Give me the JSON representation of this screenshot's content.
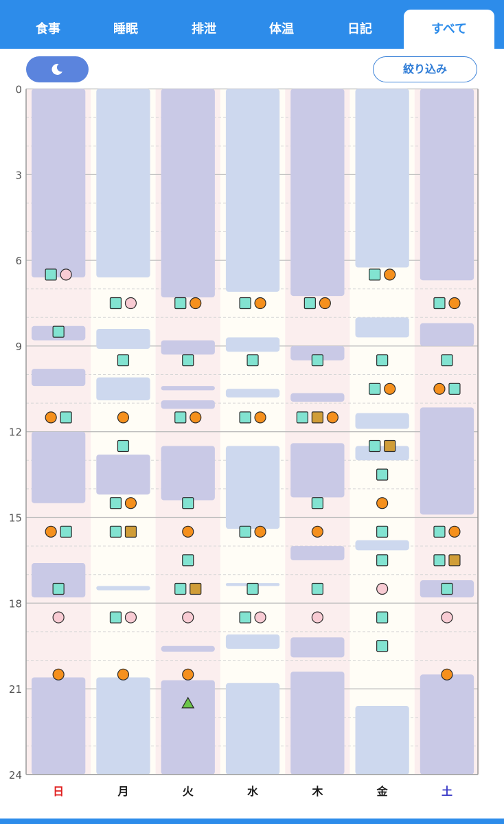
{
  "tabs": [
    {
      "label": "食事",
      "active": false
    },
    {
      "label": "睡眠",
      "active": false
    },
    {
      "label": "排泄",
      "active": false
    },
    {
      "label": "体温",
      "active": false
    },
    {
      "label": "日記",
      "active": false
    },
    {
      "label": "すべて",
      "active": true
    }
  ],
  "toolbar": {
    "night_toggle_icon": "moon-icon",
    "filter_label": "絞り込み"
  },
  "colors": {
    "tab_bar": "#2d8cea",
    "night_toggle": "#5b84dd",
    "sleep_dark": "#c9c9e6",
    "sleep_light": "#cdd8ee",
    "day_pink": "#fbeeee",
    "day_cream": "#fffdf6",
    "meal_marker": "#82e3d1",
    "urination_marker": "#f5901d",
    "temperature_marker": "#f8cbd3",
    "stool_marker": "#d09d38",
    "other_marker": "#6cc64a",
    "sunday_text": "#e02020",
    "saturday_text": "#3c3cc8"
  },
  "chart_data": {
    "type": "timeline",
    "y_axis": {
      "min": 0,
      "max": 24,
      "ticks": [
        0,
        3,
        6,
        9,
        12,
        15,
        18,
        21,
        24
      ]
    },
    "days": [
      {
        "label": "日",
        "bg": "pink",
        "label_color": "sunday",
        "sleep": [
          {
            "start": 0,
            "end": 6.6,
            "shade": "dark"
          },
          {
            "start": 8.3,
            "end": 8.8,
            "shade": "dark"
          },
          {
            "start": 9.8,
            "end": 10.4,
            "shade": "dark"
          },
          {
            "start": 12.0,
            "end": 14.5,
            "shade": "dark"
          },
          {
            "start": 16.6,
            "end": 17.8,
            "shade": "dark"
          },
          {
            "start": 20.6,
            "end": 24,
            "shade": "dark"
          }
        ],
        "events": [
          {
            "time": 6.5,
            "markers": [
              "meal",
              "temperature"
            ]
          },
          {
            "time": 8.5,
            "markers": [
              "meal"
            ]
          },
          {
            "time": 11.5,
            "markers": [
              "urination",
              "meal"
            ]
          },
          {
            "time": 15.5,
            "markers": [
              "urination",
              "meal"
            ]
          },
          {
            "time": 17.5,
            "markers": [
              "meal"
            ]
          },
          {
            "time": 18.5,
            "markers": [
              "temperature"
            ]
          },
          {
            "time": 20.5,
            "markers": [
              "urination"
            ]
          }
        ]
      },
      {
        "label": "月",
        "bg": "cream",
        "label_color": "normal",
        "sleep": [
          {
            "start": 0,
            "end": 6.6,
            "shade": "light"
          },
          {
            "start": 8.4,
            "end": 9.1,
            "shade": "light"
          },
          {
            "start": 10.1,
            "end": 10.9,
            "shade": "light"
          },
          {
            "start": 12.8,
            "end": 14.2,
            "shade": "dark"
          },
          {
            "start": 17.4,
            "end": 17.55,
            "shade": "light"
          },
          {
            "start": 20.6,
            "end": 24,
            "shade": "light"
          }
        ],
        "events": [
          {
            "time": 7.5,
            "markers": [
              "meal",
              "temperature"
            ]
          },
          {
            "time": 9.5,
            "markers": [
              "meal"
            ]
          },
          {
            "time": 11.5,
            "markers": [
              "urination"
            ]
          },
          {
            "time": 12.5,
            "markers": [
              "meal"
            ]
          },
          {
            "time": 14.5,
            "markers": [
              "meal",
              "urination"
            ]
          },
          {
            "time": 15.5,
            "markers": [
              "meal",
              "stool"
            ]
          },
          {
            "time": 18.5,
            "markers": [
              "meal",
              "temperature"
            ]
          },
          {
            "time": 20.5,
            "markers": [
              "urination"
            ]
          }
        ]
      },
      {
        "label": "火",
        "bg": "pink",
        "label_color": "normal",
        "sleep": [
          {
            "start": 0,
            "end": 7.3,
            "shade": "dark"
          },
          {
            "start": 8.8,
            "end": 9.3,
            "shade": "dark"
          },
          {
            "start": 10.4,
            "end": 10.55,
            "shade": "dark"
          },
          {
            "start": 10.9,
            "end": 11.2,
            "shade": "dark"
          },
          {
            "start": 12.5,
            "end": 14.4,
            "shade": "dark"
          },
          {
            "start": 19.5,
            "end": 19.7,
            "shade": "dark"
          },
          {
            "start": 20.7,
            "end": 24,
            "shade": "dark"
          }
        ],
        "events": [
          {
            "time": 7.5,
            "markers": [
              "meal",
              "urination"
            ]
          },
          {
            "time": 9.5,
            "markers": [
              "meal"
            ]
          },
          {
            "time": 11.5,
            "markers": [
              "meal",
              "urination"
            ]
          },
          {
            "time": 14.5,
            "markers": [
              "meal"
            ]
          },
          {
            "time": 15.5,
            "markers": [
              "urination"
            ]
          },
          {
            "time": 16.5,
            "markers": [
              "meal"
            ]
          },
          {
            "time": 17.5,
            "markers": [
              "meal",
              "stool"
            ]
          },
          {
            "time": 18.5,
            "markers": [
              "temperature"
            ]
          },
          {
            "time": 20.5,
            "markers": [
              "urination"
            ]
          },
          {
            "time": 21.5,
            "markers": [
              "other"
            ]
          }
        ]
      },
      {
        "label": "水",
        "bg": "cream",
        "label_color": "normal",
        "sleep": [
          {
            "start": 0,
            "end": 7.1,
            "shade": "light"
          },
          {
            "start": 8.7,
            "end": 9.2,
            "shade": "light"
          },
          {
            "start": 10.5,
            "end": 10.8,
            "shade": "light"
          },
          {
            "start": 12.5,
            "end": 15.4,
            "shade": "light"
          },
          {
            "start": 17.3,
            "end": 17.4,
            "shade": "light"
          },
          {
            "start": 19.1,
            "end": 19.6,
            "shade": "light"
          },
          {
            "start": 20.8,
            "end": 24,
            "shade": "light"
          }
        ],
        "events": [
          {
            "time": 7.5,
            "markers": [
              "meal",
              "urination"
            ]
          },
          {
            "time": 9.5,
            "markers": [
              "meal"
            ]
          },
          {
            "time": 11.5,
            "markers": [
              "meal",
              "urination"
            ]
          },
          {
            "time": 15.5,
            "markers": [
              "meal",
              "urination"
            ]
          },
          {
            "time": 17.5,
            "markers": [
              "meal"
            ]
          },
          {
            "time": 18.5,
            "markers": [
              "meal",
              "temperature"
            ]
          }
        ]
      },
      {
        "label": "木",
        "bg": "pink",
        "label_color": "normal",
        "sleep": [
          {
            "start": 0,
            "end": 7.25,
            "shade": "dark"
          },
          {
            "start": 9.0,
            "end": 9.5,
            "shade": "dark"
          },
          {
            "start": 10.65,
            "end": 10.95,
            "shade": "dark"
          },
          {
            "start": 12.4,
            "end": 14.3,
            "shade": "dark"
          },
          {
            "start": 16.0,
            "end": 16.5,
            "shade": "dark"
          },
          {
            "start": 19.2,
            "end": 19.9,
            "shade": "dark"
          },
          {
            "start": 20.4,
            "end": 24,
            "shade": "dark"
          }
        ],
        "events": [
          {
            "time": 7.5,
            "markers": [
              "meal",
              "urination"
            ]
          },
          {
            "time": 9.5,
            "markers": [
              "meal"
            ]
          },
          {
            "time": 11.5,
            "markers": [
              "meal",
              "stool",
              "urination"
            ]
          },
          {
            "time": 14.5,
            "markers": [
              "meal"
            ]
          },
          {
            "time": 15.5,
            "markers": [
              "urination"
            ]
          },
          {
            "time": 17.5,
            "markers": [
              "meal"
            ]
          },
          {
            "time": 18.5,
            "markers": [
              "temperature"
            ]
          }
        ]
      },
      {
        "label": "金",
        "bg": "cream",
        "label_color": "normal",
        "sleep": [
          {
            "start": 0,
            "end": 6.25,
            "shade": "light"
          },
          {
            "start": 8.0,
            "end": 8.7,
            "shade": "light"
          },
          {
            "start": 11.35,
            "end": 11.9,
            "shade": "light"
          },
          {
            "start": 12.5,
            "end": 13.0,
            "shade": "light"
          },
          {
            "start": 15.8,
            "end": 16.15,
            "shade": "light"
          },
          {
            "start": 21.6,
            "end": 24,
            "shade": "light"
          }
        ],
        "events": [
          {
            "time": 6.5,
            "markers": [
              "meal",
              "urination"
            ]
          },
          {
            "time": 9.5,
            "markers": [
              "meal"
            ]
          },
          {
            "time": 10.5,
            "markers": [
              "meal",
              "urination"
            ]
          },
          {
            "time": 12.5,
            "markers": [
              "meal",
              "stool"
            ]
          },
          {
            "time": 13.5,
            "markers": [
              "meal"
            ]
          },
          {
            "time": 14.5,
            "markers": [
              "urination"
            ]
          },
          {
            "time": 15.5,
            "markers": [
              "meal"
            ]
          },
          {
            "time": 16.5,
            "markers": [
              "meal"
            ]
          },
          {
            "time": 17.5,
            "markers": [
              "temperature"
            ]
          },
          {
            "time": 18.5,
            "markers": [
              "meal"
            ]
          },
          {
            "time": 19.5,
            "markers": [
              "meal"
            ]
          }
        ]
      },
      {
        "label": "土",
        "bg": "pink",
        "label_color": "saturday",
        "sleep": [
          {
            "start": 0,
            "end": 6.7,
            "shade": "dark"
          },
          {
            "start": 8.2,
            "end": 9.0,
            "shade": "dark"
          },
          {
            "start": 11.15,
            "end": 14.9,
            "shade": "dark"
          },
          {
            "start": 17.2,
            "end": 17.8,
            "shade": "dark"
          },
          {
            "start": 20.5,
            "end": 24,
            "shade": "dark"
          }
        ],
        "events": [
          {
            "time": 7.5,
            "markers": [
              "meal",
              "urination"
            ]
          },
          {
            "time": 9.5,
            "markers": [
              "meal"
            ]
          },
          {
            "time": 10.5,
            "markers": [
              "urination",
              "meal"
            ]
          },
          {
            "time": 15.5,
            "markers": [
              "meal",
              "urination"
            ]
          },
          {
            "time": 16.5,
            "markers": [
              "meal",
              "stool"
            ]
          },
          {
            "time": 17.5,
            "markers": [
              "meal"
            ]
          },
          {
            "time": 18.5,
            "markers": [
              "temperature"
            ]
          },
          {
            "time": 20.5,
            "markers": [
              "urination"
            ]
          }
        ]
      }
    ]
  }
}
